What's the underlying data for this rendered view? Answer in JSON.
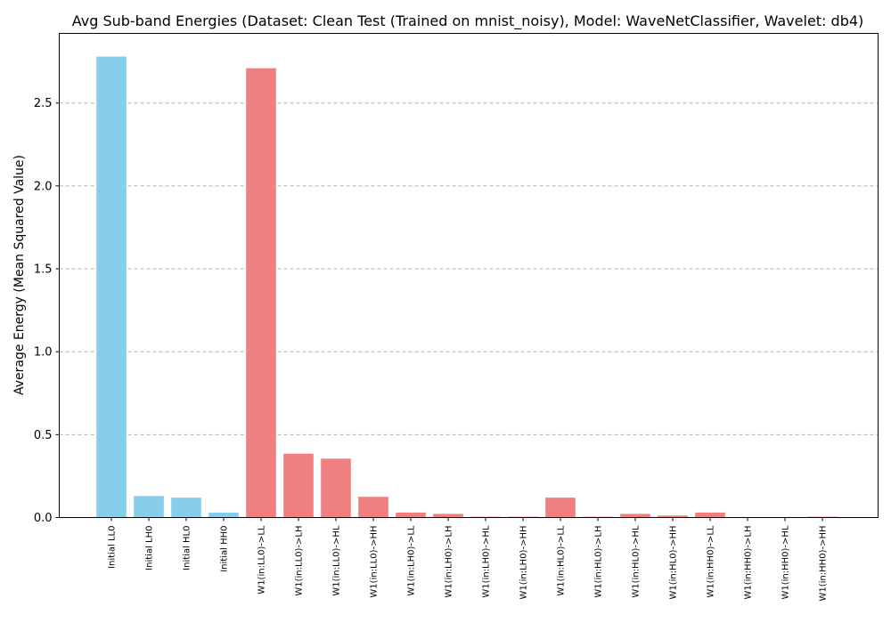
{
  "chart_data": {
    "type": "bar",
    "title": "Avg Sub-band Energies (Dataset: Clean Test (Trained on mnist_noisy), Model: WaveNetClassifier, Wavelet: db4)",
    "xlabel": "",
    "ylabel": "Average Energy (Mean Squared Value)",
    "ylim": [
      0,
      2.92
    ],
    "yticks": [
      "0.0",
      "0.5",
      "1.0",
      "1.5",
      "2.0",
      "2.5"
    ],
    "grid": "y-dashed",
    "categories": [
      "Initial LL0",
      "Initial LH0",
      "Initial HL0",
      "Initial HH0",
      "W1(in:LL0)->LL",
      "W1(in:LL0)->LH",
      "W1(in:LL0)->HL",
      "W1(in:LL0)->HH",
      "W1(in:LH0)->LL",
      "W1(in:LH0)->LH",
      "W1(in:LH0)->HL",
      "W1(in:LH0)->HH",
      "W1(in:HL0)->LL",
      "W1(in:HL0)->LH",
      "W1(in:HL0)->HL",
      "W1(in:HL0)->HH",
      "W1(in:HH0)->LL",
      "W1(in:HH0)->LH",
      "W1(in:HH0)->HL",
      "W1(in:HH0)->HH"
    ],
    "values": [
      2.78,
      0.13,
      0.12,
      0.03,
      2.71,
      0.385,
      0.355,
      0.125,
      0.03,
      0.022,
      0.005,
      0.005,
      0.12,
      0.005,
      0.022,
      0.012,
      0.03,
      0.002,
      0.002,
      0.005
    ],
    "bar_colors": [
      "#87CEEB",
      "#87CEEB",
      "#87CEEB",
      "#87CEEB",
      "#F08080",
      "#F08080",
      "#F08080",
      "#F08080",
      "#F08080",
      "#F08080",
      "#F08080",
      "#F08080",
      "#F08080",
      "#F08080",
      "#F08080",
      "#F08080",
      "#F08080",
      "#F08080",
      "#F08080",
      "#F08080"
    ]
  }
}
